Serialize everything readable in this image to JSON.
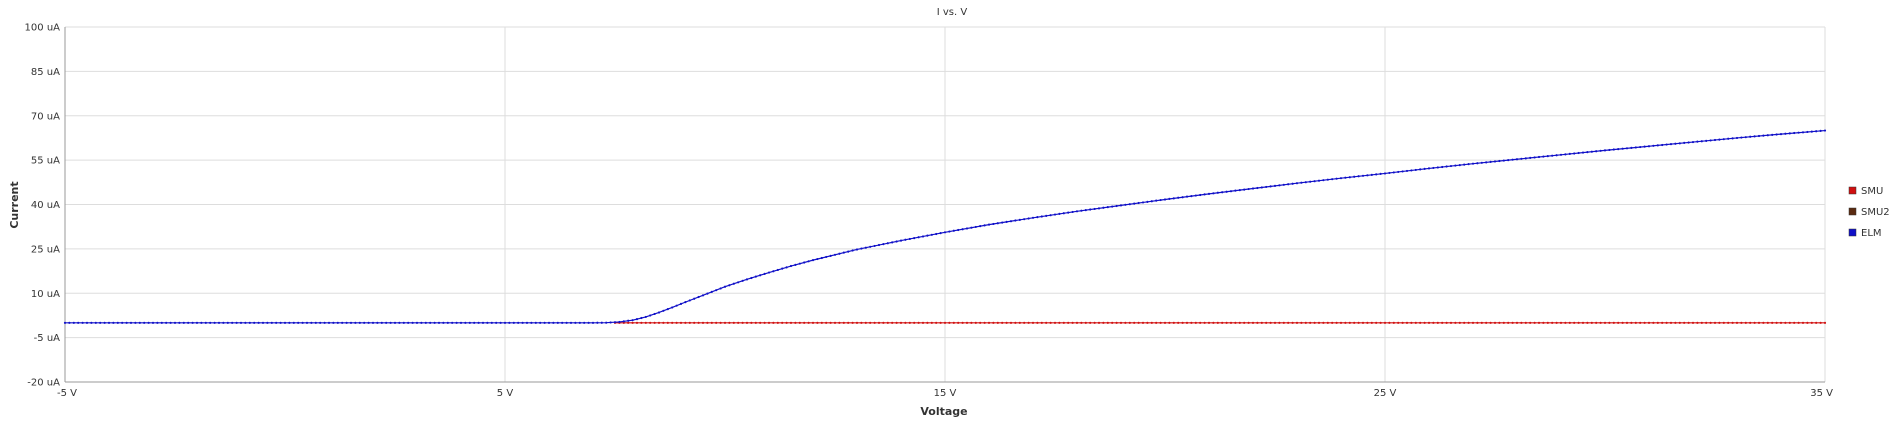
{
  "chart_data": {
    "type": "line",
    "title": "I vs. V",
    "xlabel": "Voltage",
    "ylabel": "Current",
    "xlim": [
      -5,
      35
    ],
    "ylim": [
      -20,
      100
    ],
    "x_ticks": [
      {
        "value": -5,
        "label": "-5 V"
      },
      {
        "value": 5,
        "label": "5 V"
      },
      {
        "value": 15,
        "label": "15 V"
      },
      {
        "value": 25,
        "label": "25 V"
      },
      {
        "value": 35,
        "label": "35 V"
      }
    ],
    "y_ticks": [
      {
        "value": -20,
        "label": "-20 uA"
      },
      {
        "value": -5,
        "label": "-5 uA"
      },
      {
        "value": 10,
        "label": "10 uA"
      },
      {
        "value": 25,
        "label": "25 uA"
      },
      {
        "value": 40,
        "label": "40 uA"
      },
      {
        "value": 55,
        "label": "55 uA"
      },
      {
        "value": 70,
        "label": "70 uA"
      },
      {
        "value": 85,
        "label": "85 uA"
      },
      {
        "value": 100,
        "label": "100 uA"
      }
    ],
    "grid": true,
    "legend_position": "right",
    "series": [
      {
        "name": "SMU",
        "color": "#d01010",
        "points": [
          [
            7.5,
            0
          ],
          [
            9,
            0
          ],
          [
            11,
            0
          ],
          [
            13,
            0
          ],
          [
            15,
            0
          ],
          [
            17,
            0
          ],
          [
            19,
            0
          ],
          [
            21,
            0
          ],
          [
            23,
            0
          ],
          [
            25,
            0
          ],
          [
            27,
            0
          ],
          [
            29,
            0
          ],
          [
            31,
            0
          ],
          [
            33,
            0
          ],
          [
            35,
            0
          ]
        ]
      },
      {
        "name": "SMU2",
        "color": "#5a2a10",
        "points": []
      },
      {
        "name": "ELM",
        "color": "#1010c8",
        "points": [
          [
            -5,
            0
          ],
          [
            -3,
            0
          ],
          [
            -1,
            0
          ],
          [
            1,
            0
          ],
          [
            3,
            0
          ],
          [
            5,
            0
          ],
          [
            6,
            0
          ],
          [
            7,
            0
          ],
          [
            7.3,
            0.05
          ],
          [
            7.6,
            0.3
          ],
          [
            7.9,
            0.9
          ],
          [
            8.2,
            2.0
          ],
          [
            8.5,
            3.5
          ],
          [
            8.8,
            5.2
          ],
          [
            9.1,
            7.0
          ],
          [
            9.5,
            9.3
          ],
          [
            10,
            12.2
          ],
          [
            10.5,
            14.7
          ],
          [
            11,
            17.0
          ],
          [
            11.5,
            19.2
          ],
          [
            12,
            21.2
          ],
          [
            13,
            24.8
          ],
          [
            14,
            27.8
          ],
          [
            15,
            30.6
          ],
          [
            16,
            33.2
          ],
          [
            17,
            35.5
          ],
          [
            18,
            37.7
          ],
          [
            19,
            39.7
          ],
          [
            20,
            41.7
          ],
          [
            21,
            43.6
          ],
          [
            22,
            45.4
          ],
          [
            23,
            47.2
          ],
          [
            24,
            48.9
          ],
          [
            25,
            50.5
          ],
          [
            26,
            52.2
          ],
          [
            27,
            53.8
          ],
          [
            28,
            55.3
          ],
          [
            29,
            56.8
          ],
          [
            30,
            58.3
          ],
          [
            31,
            59.7
          ],
          [
            32,
            61.1
          ],
          [
            33,
            62.5
          ],
          [
            34,
            63.8
          ],
          [
            35,
            65.0
          ]
        ]
      }
    ]
  }
}
